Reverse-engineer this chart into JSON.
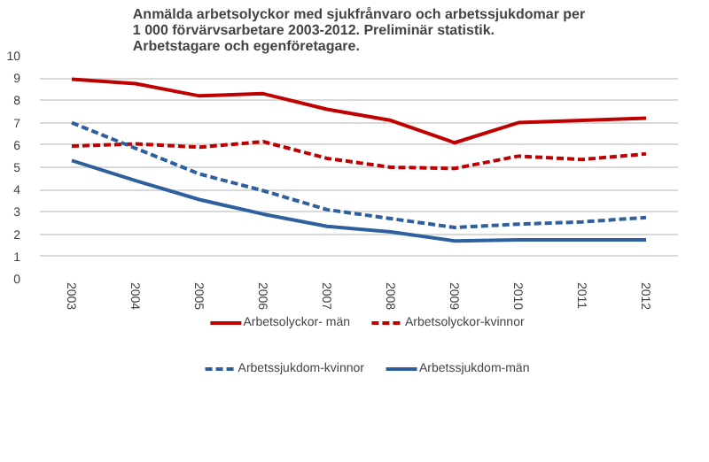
{
  "chart_data": {
    "type": "line",
    "title": "Anmälda arbetsolyckor med sjukfrånvaro och arbetssjukdomar per\n1 000 förvärvsarbetare 2003-2012. Preliminär statistik.\nArbetstagare och egenföretagare.",
    "categories": [
      "2003",
      "2004",
      "2005",
      "2006",
      "2007",
      "2008",
      "2009",
      "2010",
      "2011",
      "2012"
    ],
    "series": [
      {
        "name": "Arbetsolyckor- män",
        "color": "#c00000",
        "line_style": "solid",
        "values": [
          8.95,
          8.75,
          8.2,
          8.3,
          7.6,
          7.1,
          6.1,
          7.0,
          7.1,
          7.2
        ]
      },
      {
        "name": "Arbetsolyckor-kvinnor",
        "color": "#c00000",
        "line_style": "dashed",
        "values": [
          5.95,
          6.05,
          5.9,
          6.15,
          5.4,
          5.0,
          4.95,
          5.5,
          5.35,
          5.6
        ]
      },
      {
        "name": "Arbetssjukdom-kvinnor",
        "color": "#2e5f9e",
        "line_style": "dashed",
        "values": [
          7.0,
          5.85,
          4.7,
          3.95,
          3.1,
          2.7,
          2.3,
          2.45,
          2.55,
          2.75
        ]
      },
      {
        "name": "Arbetssjukdom-män",
        "color": "#2e5f9e",
        "line_style": "solid",
        "values": [
          5.3,
          4.4,
          3.55,
          2.9,
          2.35,
          2.1,
          1.7,
          1.75,
          1.75,
          1.75
        ]
      }
    ],
    "ylim": [
      0,
      10
    ],
    "yticks": [
      0,
      1,
      2,
      3,
      4,
      5,
      6,
      7,
      8,
      9,
      10
    ],
    "grid": "y",
    "legend": "bottom"
  }
}
